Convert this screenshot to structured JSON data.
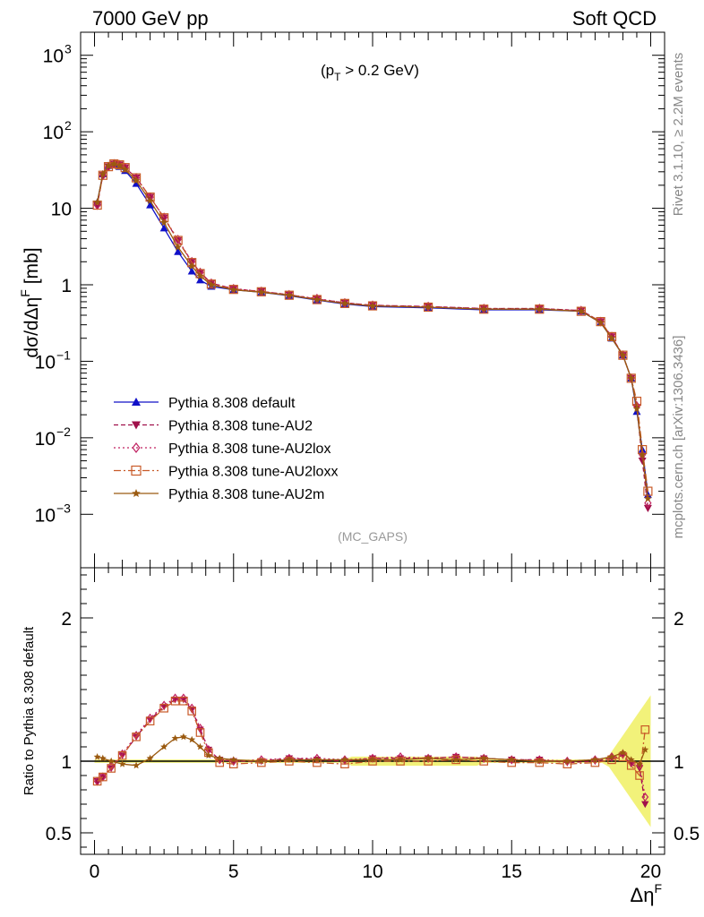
{
  "header": {
    "left": "7000 GeV pp",
    "right": "Soft QCD"
  },
  "side_labels": {
    "rivet": "Rivet 3.1.10, ≥ 2.2M events",
    "mcplots": "mcplots.cern.ch [arXiv:1306.3436]"
  },
  "chart_data": [
    {
      "type": "line",
      "panel": "main",
      "title": "",
      "annotation": "(p_T > 0.2 GeV)",
      "watermark": "(MC_GAPS)",
      "ylabel": "dσ/dΔη^F [mb]",
      "yscale": "log",
      "ylim": [
        0.0002,
        2000
      ],
      "xlim": [
        -0.5,
        20.5
      ],
      "yticks": [
        "10^-3",
        "10^-2",
        "10^-1",
        "1",
        "10",
        "10^2",
        "10^3"
      ],
      "legend_position": "bottom-left",
      "series": [
        {
          "name": "Pythia 8.308 default",
          "color": "#1010c8",
          "marker": "triangle-up",
          "dash": "",
          "x": [
            0.1,
            0.3,
            0.5,
            0.7,
            0.9,
            1.1,
            1.5,
            2.0,
            2.5,
            3.0,
            3.5,
            3.8,
            4.2,
            5.0,
            6.0,
            7.0,
            8.0,
            9.0,
            10.0,
            12.0,
            14.0,
            16.0,
            17.5,
            18.2,
            18.6,
            19.0,
            19.3,
            19.5,
            19.7,
            19.9
          ],
          "y": [
            12,
            28,
            36,
            37,
            35,
            31,
            21,
            11,
            5.5,
            2.7,
            1.5,
            1.15,
            0.95,
            0.86,
            0.8,
            0.72,
            0.63,
            0.56,
            0.52,
            0.5,
            0.47,
            0.47,
            0.45,
            0.32,
            0.2,
            0.12,
            0.06,
            0.022,
            0.007,
            0.0018
          ]
        },
        {
          "name": "Pythia 8.308 tune-AU2",
          "color": "#a0104a",
          "marker": "triangle-down",
          "dash": "5,3",
          "x": [
            0.1,
            0.3,
            0.5,
            0.7,
            0.9,
            1.1,
            1.5,
            2.0,
            2.5,
            3.0,
            3.5,
            3.8,
            4.2,
            5.0,
            6.0,
            7.0,
            8.0,
            9.0,
            10.0,
            12.0,
            14.0,
            16.0,
            17.5,
            18.2,
            18.6,
            19.0,
            19.3,
            19.5,
            19.7,
            19.9
          ],
          "y": [
            11,
            27,
            35,
            38,
            37,
            34,
            25,
            14,
            7.5,
            3.8,
            2.0,
            1.45,
            1.05,
            0.88,
            0.82,
            0.74,
            0.65,
            0.58,
            0.54,
            0.52,
            0.49,
            0.49,
            0.46,
            0.33,
            0.21,
            0.12,
            0.06,
            0.025,
            0.005,
            0.0012
          ]
        },
        {
          "name": "Pythia 8.308 tune-AU2lox",
          "color": "#c02060",
          "marker": "diamond-open",
          "dash": "2,3",
          "x": [
            0.1,
            0.3,
            0.5,
            0.7,
            0.9,
            1.1,
            1.5,
            2.0,
            2.5,
            3.0,
            3.5,
            3.8,
            4.2,
            5.0,
            6.0,
            7.0,
            8.0,
            9.0,
            10.0,
            12.0,
            14.0,
            16.0,
            17.5,
            18.2,
            18.6,
            19.0,
            19.3,
            19.5,
            19.7,
            19.9
          ],
          "y": [
            11,
            27,
            35,
            38,
            37,
            34,
            25,
            14,
            7.6,
            3.9,
            2.0,
            1.45,
            1.05,
            0.89,
            0.82,
            0.74,
            0.66,
            0.58,
            0.54,
            0.52,
            0.49,
            0.49,
            0.46,
            0.33,
            0.21,
            0.12,
            0.06,
            0.026,
            0.006,
            0.0014
          ]
        },
        {
          "name": "Pythia 8.308 tune-AU2loxx",
          "color": "#c85a28",
          "marker": "square-open",
          "dash": "8,3,2,3",
          "x": [
            0.1,
            0.3,
            0.5,
            0.7,
            0.9,
            1.1,
            1.5,
            2.0,
            2.5,
            3.0,
            3.5,
            3.8,
            4.2,
            5.0,
            6.0,
            7.0,
            8.0,
            9.0,
            10.0,
            12.0,
            14.0,
            16.0,
            17.5,
            18.2,
            18.6,
            19.0,
            19.3,
            19.5,
            19.7,
            19.9
          ],
          "y": [
            11,
            27,
            35,
            38,
            37,
            34,
            25,
            14,
            7.5,
            3.8,
            1.95,
            1.4,
            1.02,
            0.87,
            0.81,
            0.73,
            0.64,
            0.57,
            0.53,
            0.51,
            0.48,
            0.48,
            0.45,
            0.33,
            0.21,
            0.12,
            0.06,
            0.03,
            0.007,
            0.002
          ]
        },
        {
          "name": "Pythia 8.308 tune-AU2m",
          "color": "#9a5a10",
          "marker": "star",
          "dash": "",
          "x": [
            0.1,
            0.3,
            0.5,
            0.7,
            0.9,
            1.1,
            1.5,
            2.0,
            2.5,
            3.0,
            3.5,
            3.8,
            4.2,
            5.0,
            6.0,
            7.0,
            8.0,
            9.0,
            10.0,
            12.0,
            14.0,
            16.0,
            17.5,
            18.2,
            18.6,
            19.0,
            19.3,
            19.5,
            19.7,
            19.9
          ],
          "y": [
            12,
            28,
            36,
            38,
            36,
            32,
            23,
            12.5,
            6.5,
            3.1,
            1.75,
            1.3,
            1.0,
            0.86,
            0.8,
            0.73,
            0.64,
            0.57,
            0.53,
            0.51,
            0.48,
            0.48,
            0.45,
            0.32,
            0.2,
            0.12,
            0.06,
            0.024,
            0.006,
            0.0016
          ]
        }
      ]
    },
    {
      "type": "line",
      "panel": "ratio",
      "ylabel": "Ratio to Pythia 8.308 default",
      "xlabel": "Δη^F",
      "yscale": "linear",
      "ylim": [
        0.35,
        2.35
      ],
      "xlim": [
        -0.5,
        20.5
      ],
      "yticks": [
        0.5,
        1,
        2
      ],
      "xticks": [
        0,
        5,
        10,
        15,
        20
      ],
      "band_color": "#f2f27a",
      "reference": 1.0,
      "series": [
        {
          "name": "Pythia 8.308 tune-AU2",
          "color": "#a0104a",
          "marker": "triangle-down",
          "dash": "5,3",
          "x": [
            0.1,
            0.3,
            0.6,
            1.0,
            1.5,
            2.0,
            2.5,
            2.9,
            3.2,
            3.5,
            3.8,
            4.1,
            4.5,
            5.0,
            6.0,
            7.0,
            8.0,
            9.0,
            10.0,
            11.0,
            12.0,
            13.0,
            14.0,
            15.0,
            16.0,
            17.0,
            18.0,
            18.6,
            19.0,
            19.3,
            19.6,
            19.8
          ],
          "y": [
            0.86,
            0.89,
            0.95,
            1.04,
            1.17,
            1.29,
            1.38,
            1.43,
            1.43,
            1.36,
            1.22,
            1.08,
            1.01,
            1.0,
            1.0,
            1.02,
            1.01,
            1.0,
            1.02,
            1.02,
            1.02,
            1.03,
            1.02,
            1.01,
            1.01,
            0.99,
            1.0,
            1.02,
            1.04,
            0.98,
            0.95,
            0.7
          ]
        },
        {
          "name": "Pythia 8.308 tune-AU2lox",
          "color": "#c02060",
          "marker": "diamond-open",
          "dash": "2,3",
          "x": [
            0.1,
            0.3,
            0.6,
            1.0,
            1.5,
            2.0,
            2.5,
            2.9,
            3.2,
            3.5,
            3.8,
            4.1,
            4.5,
            5.0,
            6.0,
            7.0,
            8.0,
            9.0,
            10.0,
            11.0,
            12.0,
            13.0,
            14.0,
            15.0,
            16.0,
            17.0,
            18.0,
            18.6,
            19.0,
            19.3,
            19.6,
            19.8
          ],
          "y": [
            0.86,
            0.89,
            0.96,
            1.05,
            1.18,
            1.3,
            1.39,
            1.44,
            1.44,
            1.37,
            1.23,
            1.08,
            1.01,
            1.0,
            1.01,
            1.02,
            1.02,
            1.01,
            1.02,
            1.03,
            1.02,
            1.03,
            1.02,
            1.01,
            1.01,
            1.0,
            1.01,
            1.03,
            1.05,
            0.99,
            0.97,
            0.75
          ]
        },
        {
          "name": "Pythia 8.308 tune-AU2loxx",
          "color": "#c85a28",
          "marker": "square-open",
          "dash": "8,3,2,3",
          "x": [
            0.1,
            0.3,
            0.6,
            1.0,
            1.5,
            2.0,
            2.5,
            2.9,
            3.2,
            3.5,
            3.8,
            4.1,
            4.5,
            5.0,
            6.0,
            7.0,
            8.0,
            9.0,
            10.0,
            11.0,
            12.0,
            13.0,
            14.0,
            15.0,
            16.0,
            17.0,
            18.0,
            18.6,
            19.0,
            19.3,
            19.6,
            19.8
          ],
          "y": [
            0.86,
            0.89,
            0.95,
            1.04,
            1.17,
            1.28,
            1.37,
            1.42,
            1.42,
            1.35,
            1.2,
            1.06,
            0.99,
            0.98,
            0.99,
            1.0,
            0.99,
            0.98,
            1.0,
            1.0,
            1.0,
            1.01,
            1.0,
            0.99,
            0.99,
            0.98,
            0.99,
            1.01,
            1.03,
            0.97,
            0.9,
            1.22
          ]
        },
        {
          "name": "Pythia 8.308 tune-AU2m",
          "color": "#9a5a10",
          "marker": "star",
          "dash": "",
          "x": [
            0.1,
            0.3,
            0.6,
            1.0,
            1.5,
            2.0,
            2.5,
            2.9,
            3.2,
            3.5,
            3.8,
            4.1,
            4.5,
            5.0,
            6.0,
            7.0,
            8.0,
            9.0,
            10.0,
            11.0,
            12.0,
            13.0,
            14.0,
            15.0,
            16.0,
            17.0,
            18.0,
            18.6,
            19.0,
            19.3,
            19.6,
            19.8
          ],
          "y": [
            1.03,
            1.02,
            1.0,
            0.98,
            0.97,
            1.02,
            1.1,
            1.16,
            1.17,
            1.15,
            1.1,
            1.04,
            1.02,
            1.01,
            1.0,
            1.01,
            1.01,
            1.01,
            1.01,
            1.01,
            1.02,
            1.01,
            1.02,
            1.01,
            1.0,
            1.0,
            1.01,
            1.03,
            1.06,
            1.01,
            0.98,
            1.08
          ]
        }
      ]
    }
  ]
}
